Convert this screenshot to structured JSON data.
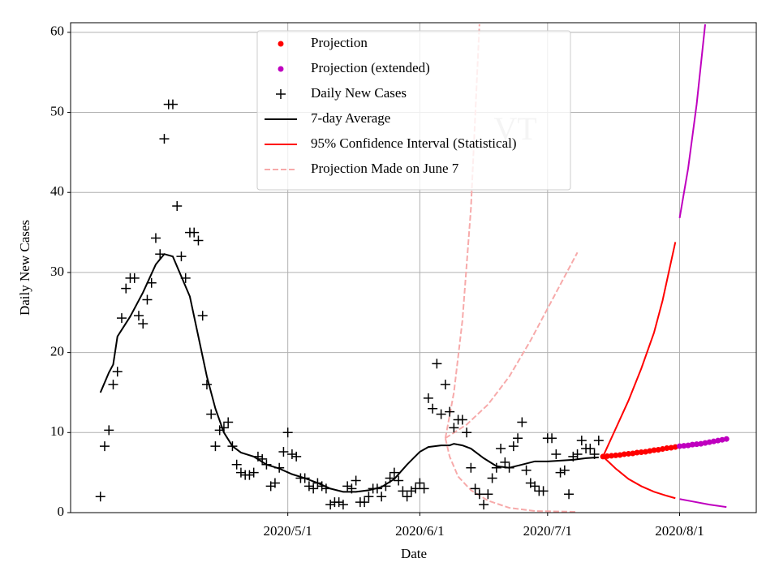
{
  "chart_data": {
    "type": "line",
    "xlabel": "Date",
    "ylabel": "Daily New Cases",
    "watermark": "VT",
    "xlim": [
      "2020/3/11",
      "2020/8/19"
    ],
    "xticks": [
      "2020/5/1",
      "2020/6/1",
      "2020/7/1",
      "2020/8/1"
    ],
    "ylim": [
      0,
      61.2
    ],
    "yticks": [
      0,
      10,
      20,
      30,
      40,
      50,
      60
    ],
    "grid": true,
    "legend": "upper center",
    "series": [
      {
        "name": "Projection",
        "color": "#ff0000",
        "style": "dot",
        "x": [
          "2020/7/14",
          "2020/7/15",
          "2020/7/16",
          "2020/7/17",
          "2020/7/18",
          "2020/7/19",
          "2020/7/20",
          "2020/7/21",
          "2020/7/22",
          "2020/7/23",
          "2020/7/24",
          "2020/7/25",
          "2020/7/26",
          "2020/7/27",
          "2020/7/28",
          "2020/7/29",
          "2020/7/30",
          "2020/7/31"
        ],
        "values": [
          7.0,
          7.05,
          7.1,
          7.15,
          7.2,
          7.3,
          7.35,
          7.4,
          7.5,
          7.55,
          7.6,
          7.7,
          7.8,
          7.85,
          7.95,
          8.05,
          8.1,
          8.2
        ]
      },
      {
        "name": "Projection (extended)",
        "color": "#bf00bf",
        "style": "dot",
        "x": [
          "2020/8/1",
          "2020/8/2",
          "2020/8/3",
          "2020/8/4",
          "2020/8/5",
          "2020/8/6",
          "2020/8/7",
          "2020/8/8",
          "2020/8/9",
          "2020/8/10",
          "2020/8/11",
          "2020/8/12"
        ],
        "values": [
          8.3,
          8.35,
          8.4,
          8.5,
          8.55,
          8.6,
          8.7,
          8.8,
          8.9,
          9.0,
          9.1,
          9.2
        ]
      },
      {
        "name": "Daily New Cases",
        "color": "#000000",
        "style": "plus",
        "x": [
          "2020/3/18",
          "2020/3/19",
          "2020/3/20",
          "2020/3/21",
          "2020/3/22",
          "2020/3/23",
          "2020/3/24",
          "2020/3/25",
          "2020/3/26",
          "2020/3/27",
          "2020/3/28",
          "2020/3/29",
          "2020/3/30",
          "2020/3/31",
          "2020/4/1",
          "2020/4/2",
          "2020/4/3",
          "2020/4/4",
          "2020/4/5",
          "2020/4/6",
          "2020/4/7",
          "2020/4/8",
          "2020/4/9",
          "2020/4/10",
          "2020/4/11",
          "2020/4/12",
          "2020/4/13",
          "2020/4/14",
          "2020/4/15",
          "2020/4/16",
          "2020/4/17",
          "2020/4/18",
          "2020/4/19",
          "2020/4/20",
          "2020/4/21",
          "2020/4/22",
          "2020/4/23",
          "2020/4/24",
          "2020/4/25",
          "2020/4/26",
          "2020/4/27",
          "2020/4/28",
          "2020/4/29",
          "2020/4/30",
          "2020/5/1",
          "2020/5/2",
          "2020/5/3",
          "2020/5/4",
          "2020/5/5",
          "2020/5/6",
          "2020/5/7",
          "2020/5/8",
          "2020/5/9",
          "2020/5/10",
          "2020/5/11",
          "2020/5/12",
          "2020/5/13",
          "2020/5/14",
          "2020/5/15",
          "2020/5/16",
          "2020/5/17",
          "2020/5/18",
          "2020/5/19",
          "2020/5/20",
          "2020/5/21",
          "2020/5/22",
          "2020/5/23",
          "2020/5/24",
          "2020/5/25",
          "2020/5/26",
          "2020/5/27",
          "2020/5/28",
          "2020/5/29",
          "2020/5/30",
          "2020/5/31",
          "2020/6/1",
          "2020/6/2",
          "2020/6/3",
          "2020/6/4",
          "2020/6/5",
          "2020/6/6",
          "2020/6/7",
          "2020/6/8",
          "2020/6/9",
          "2020/6/10",
          "2020/6/11",
          "2020/6/12",
          "2020/6/13",
          "2020/6/14",
          "2020/6/15",
          "2020/6/16",
          "2020/6/17",
          "2020/6/18",
          "2020/6/19",
          "2020/6/20",
          "2020/6/21",
          "2020/6/22",
          "2020/6/23",
          "2020/6/24",
          "2020/6/25",
          "2020/6/26",
          "2020/6/27",
          "2020/6/28",
          "2020/6/29",
          "2020/6/30",
          "2020/7/1",
          "2020/7/2",
          "2020/7/3",
          "2020/7/4",
          "2020/7/5",
          "2020/7/6",
          "2020/7/7",
          "2020/7/8",
          "2020/7/9",
          "2020/7/10",
          "2020/7/11",
          "2020/7/12",
          "2020/7/13"
        ],
        "values": [
          2,
          8.3,
          10.3,
          16,
          17.6,
          24.3,
          28,
          29.3,
          29.3,
          24.6,
          23.6,
          26.6,
          28.7,
          34.3,
          32.3,
          46.7,
          51,
          51,
          38.3,
          32,
          29.3,
          35,
          35,
          34,
          24.6,
          16,
          12.3,
          8.3,
          10.3,
          10.6,
          11.3,
          8.3,
          6,
          5,
          4.7,
          4.7,
          5,
          7,
          6.7,
          6,
          3.3,
          3.7,
          5.6,
          7.6,
          10,
          7.3,
          7,
          4.3,
          4.3,
          3.3,
          3,
          3.7,
          3.3,
          3,
          1,
          1.3,
          1.3,
          1,
          3.3,
          3,
          4,
          1.3,
          1.3,
          2,
          3,
          3,
          2,
          3.3,
          4.3,
          5,
          4,
          2.7,
          2,
          2.7,
          3,
          3.7,
          3,
          14.3,
          13,
          18.6,
          12.3,
          16,
          12.6,
          10.6,
          11.6,
          11.6,
          10,
          5.6,
          3,
          2.3,
          1,
          2.3,
          4.3,
          5.6,
          8,
          6.3,
          5.6,
          8.3,
          9.3,
          11.3,
          5.3,
          3.7,
          3.3,
          2.7,
          2.7,
          9.3,
          9.3,
          7.3,
          5,
          5.3,
          2.3,
          7,
          7.3,
          9,
          8,
          8,
          7.3,
          9
        ]
      },
      {
        "name": "7-day Average",
        "color": "#000000",
        "style": "line",
        "x": [
          "2020/3/18",
          "2020/3/20",
          "2020/3/21",
          "2020/3/22",
          "2020/3/25",
          "2020/3/28",
          "2020/3/31",
          "2020/4/2",
          "2020/4/4",
          "2020/4/6",
          "2020/4/8",
          "2020/4/10",
          "2020/4/12",
          "2020/4/14",
          "2020/4/16",
          "2020/4/18",
          "2020/4/20",
          "2020/4/23",
          "2020/4/26",
          "2020/4/29",
          "2020/5/2",
          "2020/5/5",
          "2020/5/8",
          "2020/5/11",
          "2020/5/14",
          "2020/5/17",
          "2020/5/20",
          "2020/5/23",
          "2020/5/26",
          "2020/5/29",
          "2020/6/1",
          "2020/6/3",
          "2020/6/6",
          "2020/6/8",
          "2020/6/9",
          "2020/6/11",
          "2020/6/13",
          "2020/6/16",
          "2020/6/19",
          "2020/6/22",
          "2020/6/25",
          "2020/6/28",
          "2020/7/1",
          "2020/7/4",
          "2020/7/7",
          "2020/7/10",
          "2020/7/13"
        ],
        "values": [
          15,
          17.5,
          18.5,
          22,
          24.5,
          27.5,
          31,
          32.3,
          32,
          29.5,
          27,
          22,
          17,
          13,
          10,
          8.3,
          7.5,
          7,
          6,
          5.5,
          4.8,
          4.3,
          3.7,
          3,
          2.6,
          2.6,
          2.8,
          3.2,
          4.2,
          6,
          7.6,
          8.2,
          8.4,
          8.4,
          8.6,
          8.4,
          8,
          6.8,
          5.8,
          5.6,
          6,
          6.4,
          6.4,
          6.5,
          6.6,
          6.8,
          6.9
        ]
      },
      {
        "name": "95% Confidence Interval (Statistical)",
        "color": "#ff0000",
        "style": "line",
        "x": [
          "2020/7/14",
          "2020/7/17",
          "2020/7/20",
          "2020/7/23",
          "2020/7/26",
          "2020/7/28",
          "2020/7/31"
        ],
        "values": [
          7,
          10.5,
          14,
          18,
          22.5,
          26.5,
          33.8
        ]
      },
      {
        "color": "#ff0000",
        "style": "line",
        "x": [
          "2020/7/14",
          "2020/7/17",
          "2020/7/20",
          "2020/7/23",
          "2020/7/26",
          "2020/7/29",
          "2020/7/31"
        ],
        "values": [
          7,
          5.5,
          4.2,
          3.3,
          2.6,
          2.1,
          1.8
        ]
      },
      {
        "color": "#bf00bf",
        "style": "line",
        "x": [
          "2020/8/1",
          "2020/8/3",
          "2020/8/5",
          "2020/8/7"
        ],
        "values": [
          36.8,
          43,
          51,
          61
        ]
      },
      {
        "color": "#bf00bf",
        "style": "line",
        "x": [
          "2020/8/1",
          "2020/8/4",
          "2020/8/8",
          "2020/8/12"
        ],
        "values": [
          1.7,
          1.4,
          1.0,
          0.7
        ]
      },
      {
        "name": "Projection Made on June 7",
        "color": "#f7aaaa",
        "style": "dashed",
        "x": [
          "2020/6/7",
          "2020/6/12",
          "2020/6/17",
          "2020/6/22",
          "2020/6/27",
          "2020/7/2",
          "2020/7/8"
        ],
        "values": [
          9.3,
          11,
          13.5,
          17,
          21.5,
          26.5,
          32.5
        ]
      },
      {
        "color": "#f7aaaa",
        "style": "dashed",
        "x": [
          "2020/6/7",
          "2020/6/9",
          "2020/6/11",
          "2020/6/13",
          "2020/6/15"
        ],
        "values": [
          9.3,
          15,
          24,
          38,
          61
        ]
      },
      {
        "color": "#f7aaaa",
        "style": "dashed",
        "x": [
          "2020/6/7",
          "2020/6/8",
          "2020/6/10",
          "2020/6/13",
          "2020/6/17",
          "2020/6/22",
          "2020/6/28",
          "2020/7/8"
        ],
        "values": [
          9.3,
          7,
          4.5,
          2.8,
          1.5,
          0.6,
          0.2,
          0.1
        ]
      }
    ]
  }
}
